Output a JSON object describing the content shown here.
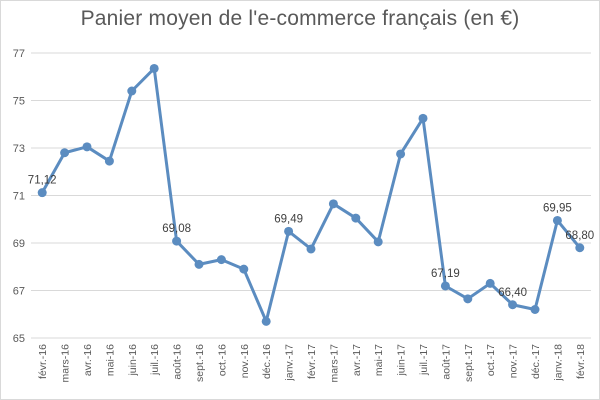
{
  "chart_data": {
    "type": "line",
    "title": "Panier moyen de l'e-commerce français (en €)",
    "xlabel": "",
    "ylabel": "",
    "ylim": [
      65,
      77
    ],
    "yticks": [
      "65",
      "67",
      "69",
      "71",
      "73",
      "75",
      "77"
    ],
    "grid": true,
    "legend": "none",
    "line_color": "#5b8cc0",
    "categories": [
      "févr.-16",
      "mars-16",
      "avr.-16",
      "mai-16",
      "juin-16",
      "juil.-16",
      "août-16",
      "sept.-16",
      "oct.-16",
      "nov.-16",
      "déc.-16",
      "janv.-17",
      "févr.-17",
      "mars-17",
      "avr.-17",
      "mai-17",
      "juin-17",
      "juil.-17",
      "août-17",
      "sept.-17",
      "oct.-17",
      "nov.-17",
      "déc.-17",
      "janv.-18",
      "févr.-18"
    ],
    "values": [
      71.12,
      72.8,
      73.05,
      72.45,
      75.4,
      76.35,
      69.08,
      68.1,
      68.3,
      67.9,
      65.7,
      69.49,
      68.75,
      70.65,
      70.05,
      69.05,
      72.75,
      74.25,
      67.19,
      66.65,
      67.3,
      66.4,
      66.2,
      69.95,
      68.8
    ],
    "data_labels": {
      "0": "71,12",
      "6": "69,08",
      "11": "69,49",
      "18": "67,19",
      "21": "66,40",
      "23": "69,95",
      "24": "68,80"
    }
  }
}
